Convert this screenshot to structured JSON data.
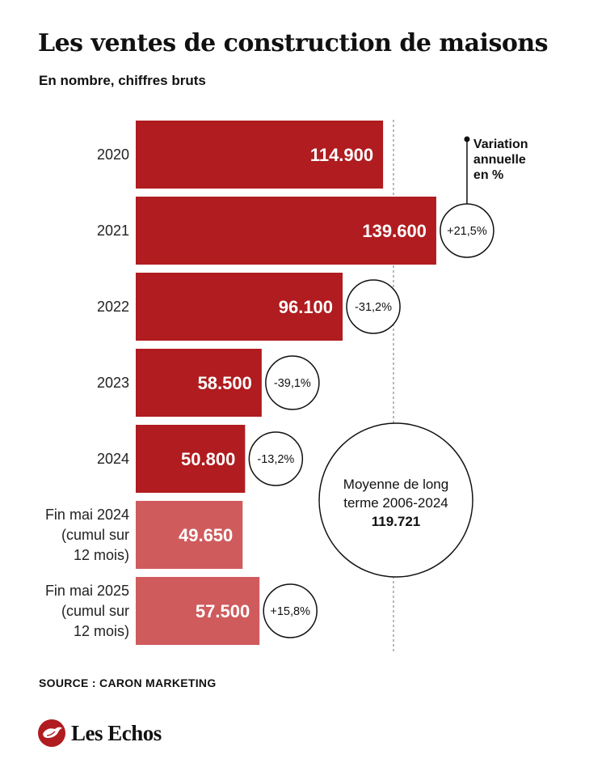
{
  "header": {
    "title": "Les ventes de construction de maisons",
    "subtitle": "En nombre, chiffres bruts"
  },
  "chart_data": {
    "type": "bar",
    "orientation": "horizontal",
    "title": "Les ventes de construction de maisons",
    "subtitle": "En nombre, chiffres bruts",
    "categories": [
      [
        "2020"
      ],
      [
        "2021"
      ],
      [
        "2022"
      ],
      [
        "2023"
      ],
      [
        "2024"
      ],
      [
        "Fin mai 2024",
        "(cumul sur",
        "12 mois)"
      ],
      [
        "Fin mai 2025",
        "(cumul sur",
        "12 mois)"
      ]
    ],
    "values": [
      114900,
      139600,
      96100,
      58500,
      50800,
      49650,
      57500
    ],
    "value_labels": [
      "114.900",
      "139.600",
      "96.100",
      "58.500",
      "50.800",
      "49.650",
      "57.500"
    ],
    "variation_title": [
      "Variation",
      "annuelle",
      "en %"
    ],
    "variations": [
      null,
      "+21,5%",
      "-31,2%",
      "-39,1%",
      "-13,2%",
      null,
      "+15,8%"
    ],
    "reference_line": {
      "value": 119721,
      "label": [
        "Moyenne de long",
        "terme 2006-2024"
      ],
      "value_label": "119.721"
    },
    "colors": {
      "primary": "#b01c1f",
      "cumulative": "#cf5b5d"
    },
    "xlim": [
      0,
      140000
    ],
    "grid": false,
    "legend": "none"
  },
  "footer": {
    "source": "SOURCE : CARON MARKETING",
    "brand": "Les Echos",
    "brand_icon": "les-echos-eagle-icon"
  }
}
